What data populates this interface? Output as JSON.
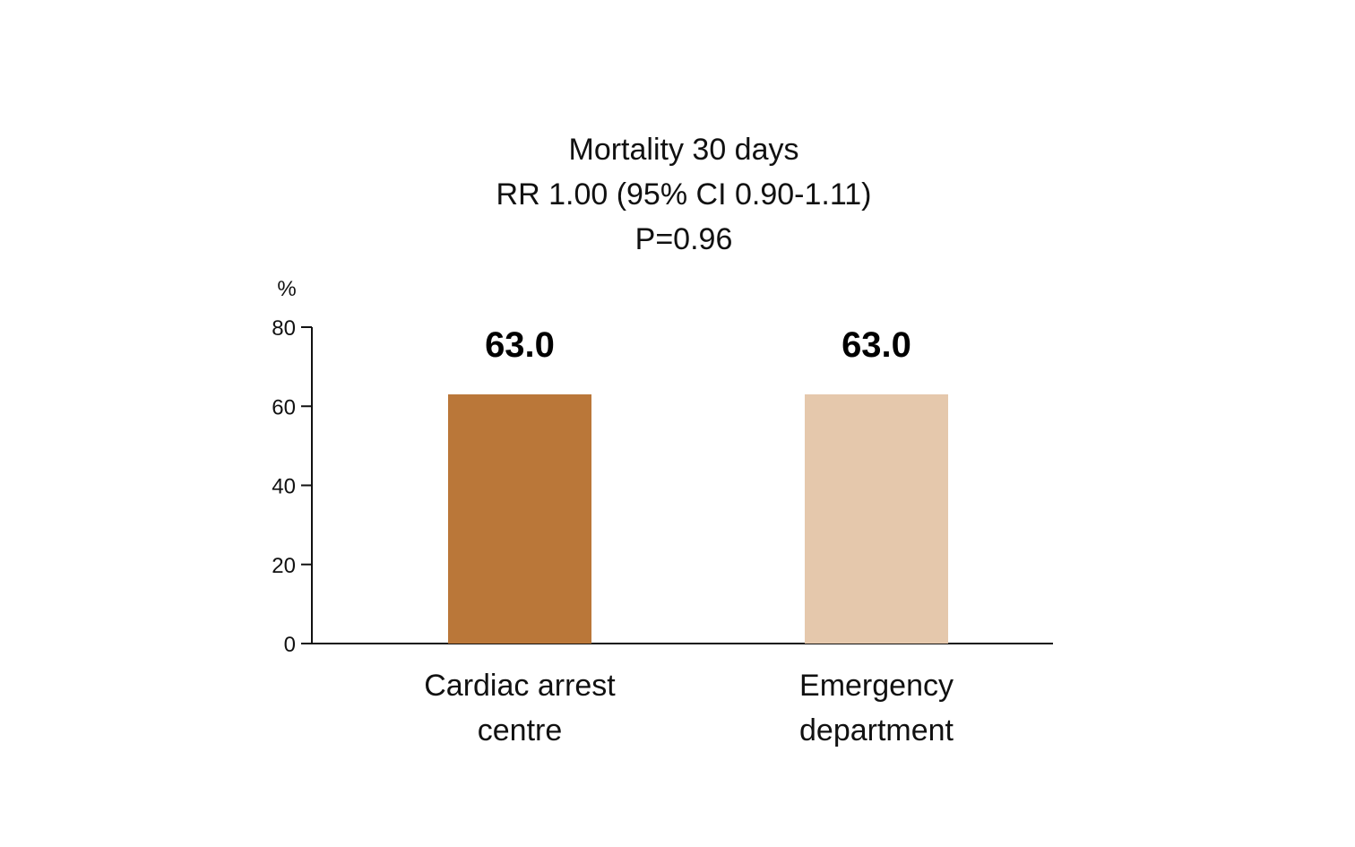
{
  "chart_data": {
    "type": "bar",
    "title_lines": [
      "Mortality 30 days",
      "RR 1.00 (95% CI 0.90-1.11)",
      "P=0.96"
    ],
    "ylabel": "%",
    "xlabel": "",
    "ylim": [
      0,
      80
    ],
    "yticks": [
      0,
      20,
      40,
      60,
      80
    ],
    "categories": [
      [
        "Cardiac arrest",
        "centre"
      ],
      [
        "Emergency",
        "department"
      ]
    ],
    "values": [
      63.0,
      63.0
    ],
    "data_labels": [
      "63.0",
      "63.0"
    ],
    "colors": [
      "#BA7739",
      "#E5C8AC"
    ],
    "grid": false,
    "legend": "none"
  }
}
